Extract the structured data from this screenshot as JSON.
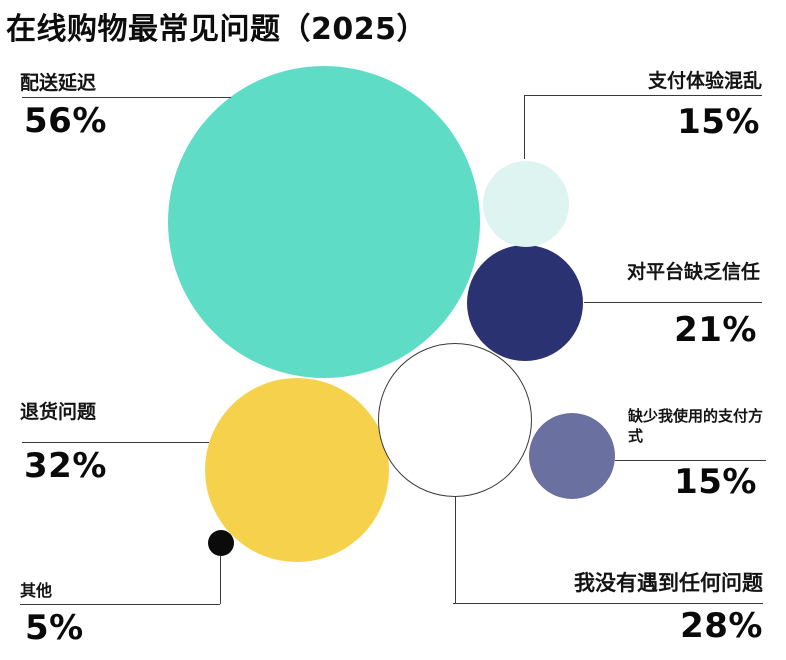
{
  "title": "在线购物最常见问题（2025）",
  "chart_data": {
    "type": "bubble",
    "title": "在线购物最常见问题（2025）",
    "unit": "percent",
    "legend": "none",
    "note": "bubble radius proportional to percent value",
    "items": [
      {
        "id": "delivery-delay",
        "label": "配送延迟",
        "percent": 56,
        "value_label": "56%",
        "color": "#5fdcc5"
      },
      {
        "id": "payment-experience-chaos",
        "label": "支付体验混乱",
        "percent": 15,
        "value_label": "15%",
        "color": "#ddf4f1"
      },
      {
        "id": "lack-of-platform-trust",
        "label": "对平台缺乏信任",
        "percent": 21,
        "value_label": "21%",
        "color": "#2b3271"
      },
      {
        "id": "return-problems",
        "label": "退货问题",
        "percent": 32,
        "value_label": "32%",
        "color": "#f6d24c"
      },
      {
        "id": "missing-payment-method",
        "label": "缺少我使用的支付方式",
        "percent": 15,
        "value_label": "15%",
        "color": "#6a70a0"
      },
      {
        "id": "no-problems-encountered",
        "label": "我没有遇到任何问题",
        "percent": 28,
        "value_label": "28%",
        "color": "#ffffff",
        "outline": "#3a3a3a"
      },
      {
        "id": "other",
        "label": "其他",
        "percent": 5,
        "value_label": "5%",
        "color": "#0b0b0b"
      }
    ],
    "colors": {
      "background": "#ffffff",
      "text": "#111111",
      "connector_line": "#3a3a3a"
    }
  }
}
